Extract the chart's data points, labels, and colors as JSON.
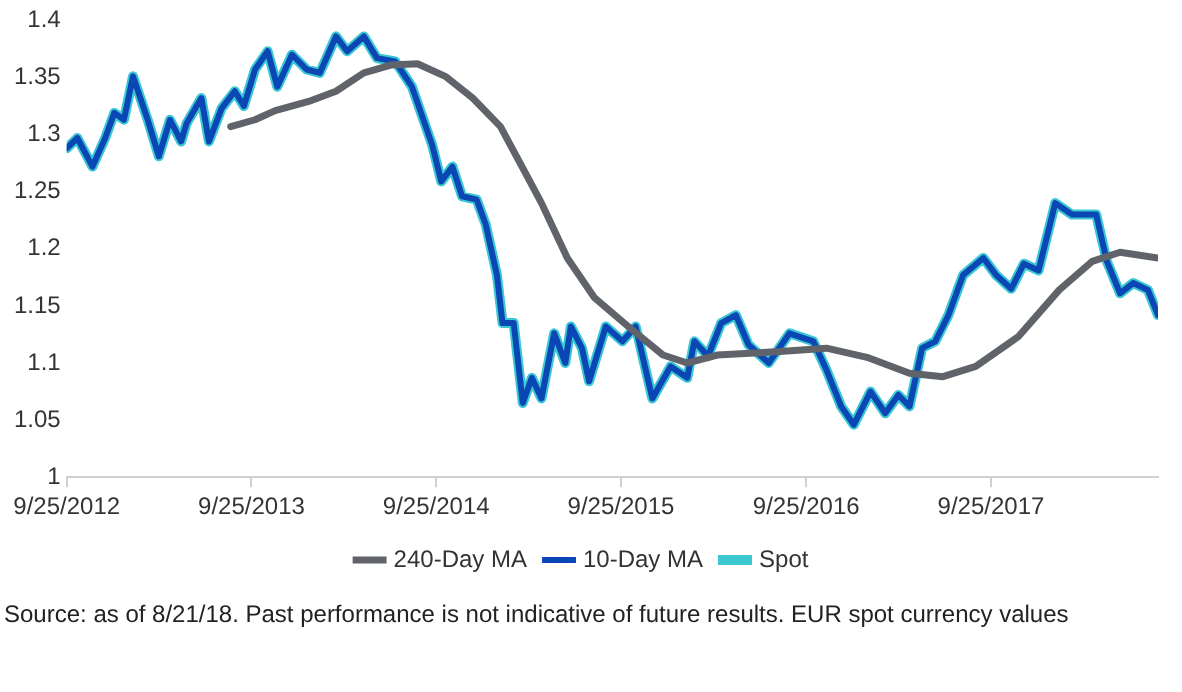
{
  "chart_data": {
    "type": "line",
    "x": [
      "2012-09-25",
      "2012-10-16",
      "2012-11-15",
      "2012-12-10",
      "2012-12-28",
      "2013-01-16",
      "2013-02-03",
      "2013-03-04",
      "2013-03-26",
      "2013-04-17",
      "2013-05-09",
      "2013-05-20",
      "2013-06-18",
      "2013-07-03",
      "2013-07-28",
      "2013-08-23",
      "2013-09-10",
      "2013-10-02",
      "2013-10-27",
      "2013-11-15",
      "2013-12-14",
      "2014-01-12",
      "2014-02-07",
      "2014-03-11",
      "2014-04-02",
      "2014-05-05",
      "2014-05-31",
      "2014-07-06",
      "2014-08-08",
      "2014-09-17",
      "2014-10-05",
      "2014-10-27",
      "2014-11-15",
      "2014-12-14",
      "2015-01-01",
      "2015-01-23",
      "2015-02-03",
      "2015-02-25",
      "2015-03-15",
      "2015-04-02",
      "2015-04-21",
      "2015-05-16",
      "2015-06-07",
      "2015-06-18",
      "2015-07-10",
      "2015-07-24",
      "2015-08-26",
      "2015-09-28",
      "2015-10-24",
      "2015-11-26",
      "2016-01-01",
      "2016-02-03",
      "2016-02-17",
      "2016-03-15",
      "2016-04-10",
      "2016-05-09",
      "2016-06-03",
      "2016-07-13",
      "2016-08-23",
      "2016-10-09",
      "2016-11-04",
      "2016-12-03",
      "2016-12-28",
      "2017-01-30",
      "2017-02-28",
      "2017-03-26",
      "2017-04-17",
      "2017-05-12",
      "2017-06-07",
      "2017-07-03",
      "2017-08-01",
      "2017-09-10",
      "2017-10-05",
      "2017-11-04",
      "2017-11-29",
      "2017-12-28",
      "2018-01-30",
      "2018-03-04",
      "2018-04-21",
      "2018-05-12",
      "2018-06-07",
      "2018-07-03",
      "2018-08-01",
      "2018-08-21"
    ],
    "series": [
      {
        "name": "Spot",
        "color": "#3cc8d2",
        "values": [
          1.288,
          1.297,
          1.272,
          1.297,
          1.319,
          1.313,
          1.351,
          1.313,
          1.281,
          1.313,
          1.294,
          1.31,
          1.332,
          1.294,
          1.323,
          1.338,
          1.325,
          1.357,
          1.373,
          1.342,
          1.37,
          1.357,
          1.354,
          1.386,
          1.373,
          1.386,
          1.367,
          1.364,
          1.342,
          1.291,
          1.259,
          1.272,
          1.246,
          1.243,
          1.221,
          1.177,
          1.135,
          1.135,
          1.065,
          1.087,
          1.069,
          1.126,
          1.1,
          1.132,
          1.113,
          1.084,
          1.132,
          1.119,
          1.132,
          1.069,
          1.097,
          1.087,
          1.119,
          1.106,
          1.135,
          1.142,
          1.116,
          1.1,
          1.126,
          1.119,
          1.094,
          1.062,
          1.046,
          1.075,
          1.056,
          1.072,
          1.062,
          1.113,
          1.119,
          1.142,
          1.177,
          1.192,
          1.177,
          1.165,
          1.187,
          1.181,
          1.24,
          1.23,
          1.23,
          1.189,
          1.161,
          1.17,
          1.164,
          1.142
        ]
      },
      {
        "name": "10-Day MA",
        "color": "#0a46b4",
        "values": [
          1.288,
          1.297,
          1.272,
          1.297,
          1.319,
          1.313,
          1.351,
          1.313,
          1.281,
          1.313,
          1.294,
          1.31,
          1.332,
          1.294,
          1.323,
          1.338,
          1.325,
          1.357,
          1.373,
          1.342,
          1.37,
          1.357,
          1.354,
          1.386,
          1.373,
          1.386,
          1.367,
          1.364,
          1.342,
          1.291,
          1.259,
          1.272,
          1.246,
          1.243,
          1.221,
          1.177,
          1.135,
          1.135,
          1.065,
          1.087,
          1.069,
          1.126,
          1.1,
          1.132,
          1.113,
          1.084,
          1.132,
          1.119,
          1.132,
          1.069,
          1.097,
          1.087,
          1.119,
          1.106,
          1.135,
          1.142,
          1.116,
          1.1,
          1.126,
          1.119,
          1.094,
          1.062,
          1.046,
          1.075,
          1.056,
          1.072,
          1.062,
          1.113,
          1.119,
          1.142,
          1.177,
          1.192,
          1.177,
          1.165,
          1.187,
          1.181,
          1.24,
          1.23,
          1.23,
          1.189,
          1.161,
          1.17,
          1.164,
          1.142
        ]
      },
      {
        "name": "240-Day MA",
        "color": "#60646a",
        "x": [
          "2013-08-15",
          "2013-10-02",
          "2013-11-11",
          "2014-01-16",
          "2014-03-11",
          "2014-05-05",
          "2014-06-29",
          "2014-08-19",
          "2014-10-13",
          "2014-12-06",
          "2015-01-30",
          "2015-03-22",
          "2015-04-21",
          "2015-06-11",
          "2015-08-04",
          "2015-10-09",
          "2015-12-17",
          "2016-02-03",
          "2016-04-02",
          "2016-08-04",
          "2016-11-04",
          "2017-01-23",
          "2017-04-17",
          "2017-06-22",
          "2017-08-26",
          "2017-11-18",
          "2018-02-07",
          "2018-04-13",
          "2018-06-07",
          "2018-08-21"
        ],
        "values": [
          1.307,
          1.313,
          1.321,
          1.329,
          1.338,
          1.354,
          1.361,
          1.362,
          1.351,
          1.332,
          1.307,
          1.265,
          1.24,
          1.192,
          1.157,
          1.132,
          1.107,
          1.1,
          1.107,
          1.11,
          1.113,
          1.105,
          1.091,
          1.088,
          1.097,
          1.123,
          1.164,
          1.189,
          1.197,
          1.192
        ]
      }
    ],
    "xlim": [
      "2012-09-25",
      "2018-08-21"
    ],
    "xticks": [
      {
        "value": "2012-09-25",
        "label": "9/25/2012"
      },
      {
        "value": "2013-09-25",
        "label": "9/25/2013"
      },
      {
        "value": "2014-09-25",
        "label": "9/25/2014"
      },
      {
        "value": "2015-09-25",
        "label": "9/25/2015"
      },
      {
        "value": "2016-09-25",
        "label": "9/25/2016"
      },
      {
        "value": "2017-09-25",
        "label": "9/25/2017"
      }
    ],
    "ylim": [
      1,
      1.4
    ],
    "yticks": [
      1,
      1.05,
      1.1,
      1.15,
      1.2,
      1.25,
      1.3,
      1.35,
      1.4
    ],
    "grid": false,
    "legend": "bottom",
    "marker": "none",
    "line_style": "solid",
    "annotations": [
      "Source: as of 8/21/18. Past performance is not indicative of future results. EUR spot currency values"
    ]
  }
}
